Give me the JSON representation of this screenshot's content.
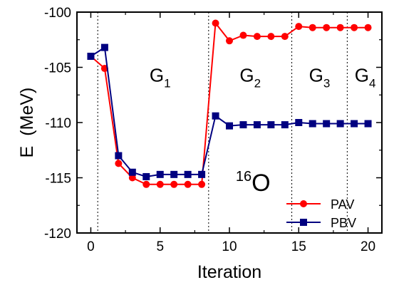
{
  "chart_data": {
    "type": "line",
    "xlabel": "Iteration",
    "ylabel": {
      "main": "E",
      "unit": "(MeV)"
    },
    "xlim": [
      -1,
      21
    ],
    "ylim": [
      -120,
      -100
    ],
    "xticks": [
      0,
      5,
      10,
      15,
      20
    ],
    "yticks": [
      -120,
      -115,
      -110,
      -105,
      -100
    ],
    "grid": false,
    "legend_position": "lower-right",
    "series": [
      {
        "name": "PAV",
        "color": "#ff0000",
        "marker": "circle",
        "x": [
          0,
          1,
          2,
          3,
          4,
          5,
          6,
          7,
          8,
          9,
          10,
          11,
          12,
          13,
          14,
          15,
          16,
          17,
          18,
          19,
          20
        ],
        "y": [
          -104.0,
          -105.1,
          -113.7,
          -115.0,
          -115.6,
          -115.6,
          -115.6,
          -115.6,
          -115.6,
          -101.0,
          -102.6,
          -102.1,
          -102.2,
          -102.2,
          -102.2,
          -101.3,
          -101.4,
          -101.4,
          -101.4,
          -101.4,
          -101.4
        ]
      },
      {
        "name": "PBV",
        "color": "#000080",
        "marker": "square",
        "x": [
          0,
          1,
          2,
          3,
          4,
          5,
          6,
          7,
          8,
          9,
          10,
          11,
          12,
          13,
          14,
          15,
          16,
          17,
          18,
          19,
          20
        ],
        "y": [
          -104.0,
          -103.2,
          -113.0,
          -114.5,
          -114.9,
          -114.7,
          -114.7,
          -114.7,
          -114.7,
          -109.4,
          -110.3,
          -110.2,
          -110.2,
          -110.2,
          -110.2,
          -110.0,
          -110.1,
          -110.1,
          -110.1,
          -110.1,
          -110.1
        ]
      }
    ],
    "vlines": [
      0.5,
      8.5,
      14.5,
      18.5
    ],
    "region_labels": [
      {
        "main": "G",
        "sub": "1",
        "x": 5.0,
        "y": -106.3
      },
      {
        "main": "G",
        "sub": "2",
        "x": 11.5,
        "y": -106.3
      },
      {
        "main": "G",
        "sub": "3",
        "x": 16.5,
        "y": -106.3
      },
      {
        "main": "G",
        "sub": "4",
        "x": 19.8,
        "y": -106.3
      }
    ],
    "annotation": {
      "sup": "16",
      "main": "O",
      "x": 12.0,
      "y": -116.2
    }
  }
}
